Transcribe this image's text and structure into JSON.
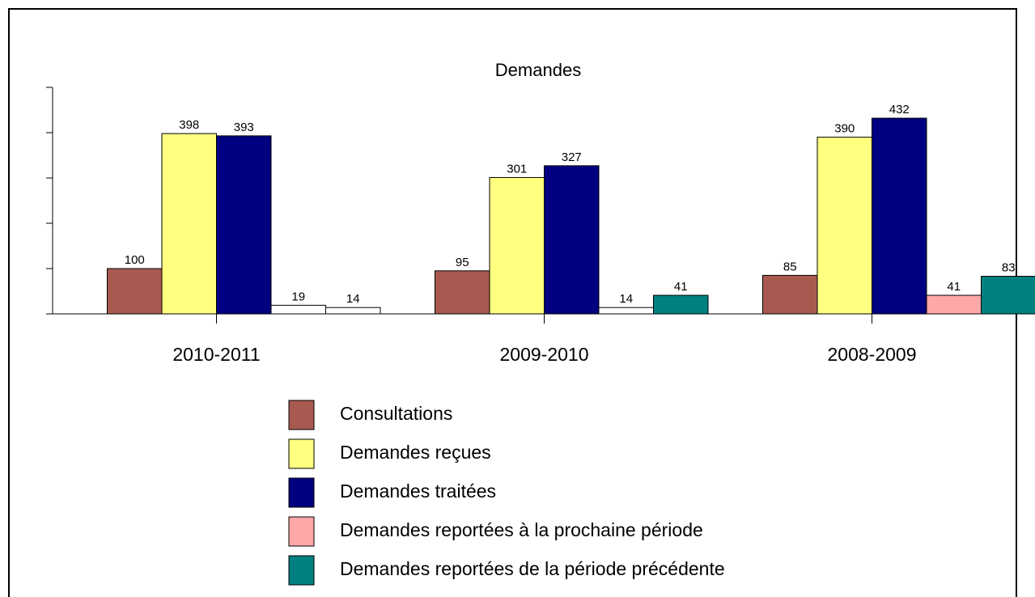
{
  "chart_data": {
    "type": "bar",
    "title": "Demandes",
    "categories": [
      "2010-2011",
      "2009-2010",
      "2008-2009"
    ],
    "series": [
      {
        "name": "Consultations",
        "color": "#a85a50",
        "values": [
          100,
          95,
          85
        ]
      },
      {
        "name": "Demandes reçues",
        "color": "#ffff80",
        "values": [
          398,
          301,
          390
        ]
      },
      {
        "name": "Demandes traitées",
        "color": "#000080",
        "values": [
          393,
          327,
          432
        ]
      },
      {
        "name": "Demandes reportées à la prochaine période",
        "color": "#ffa8a8",
        "colors": [
          "#ffffff",
          "#ffffff",
          "#ffa8a8"
        ],
        "values": [
          19,
          14,
          41
        ]
      },
      {
        "name": "Demandes reportées de la période précédente",
        "color": "#008080",
        "colors": [
          "#ffffff",
          "#008080",
          "#008080"
        ],
        "values": [
          14,
          41,
          83
        ]
      }
    ],
    "ylim": [
      0,
      500
    ],
    "yticks": [
      0,
      100,
      200,
      300,
      400,
      500
    ]
  }
}
